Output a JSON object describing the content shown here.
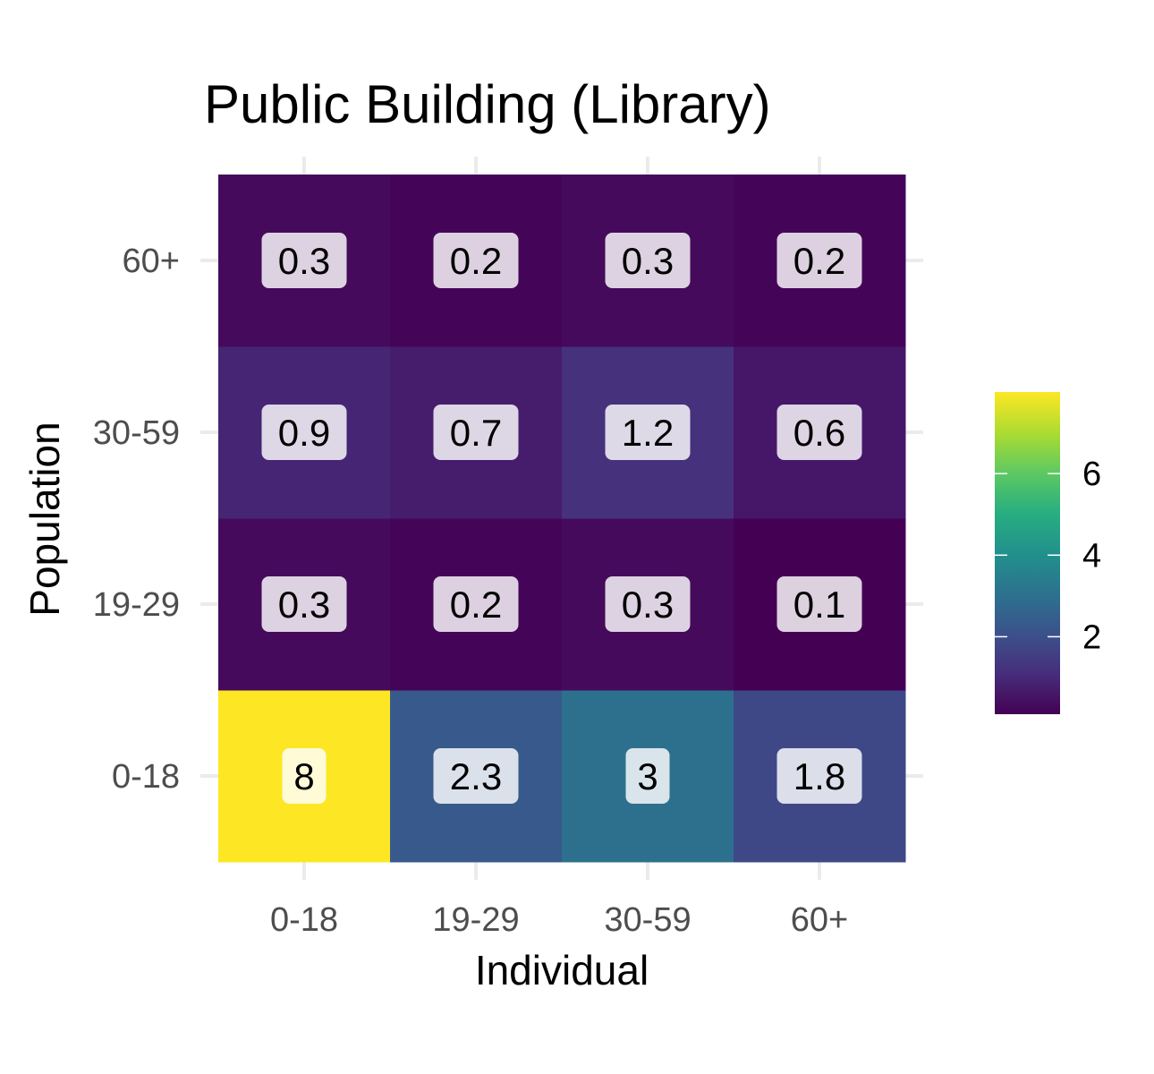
{
  "chart_data": {
    "type": "heatmap",
    "title": "Public Building (Library)",
    "xlabel": "Individual",
    "ylabel": "Population",
    "x_categories": [
      "0-18",
      "19-29",
      "30-59",
      "60+"
    ],
    "y_categories": [
      "0-18",
      "19-29",
      "30-59",
      "60+"
    ],
    "values": [
      [
        8,
        2.3,
        3,
        1.8
      ],
      [
        0.3,
        0.2,
        0.3,
        0.1
      ],
      [
        0.9,
        0.7,
        1.2,
        0.6
      ],
      [
        0.3,
        0.2,
        0.3,
        0.2
      ]
    ],
    "value_labels": [
      [
        "8",
        "2.3",
        "3",
        "1.8"
      ],
      [
        "0.3",
        "0.2",
        "0.3",
        "0.1"
      ],
      [
        "0.9",
        "0.7",
        "1.2",
        "0.6"
      ],
      [
        "0.3",
        "0.2",
        "0.3",
        "0.2"
      ]
    ],
    "colorscale": "viridis",
    "color_range": [
      0.1,
      8
    ],
    "legend": {
      "placement": "right",
      "ticks": [
        2,
        4,
        6
      ],
      "tick_labels": [
        "2",
        "4",
        "6"
      ]
    },
    "grid": true
  }
}
